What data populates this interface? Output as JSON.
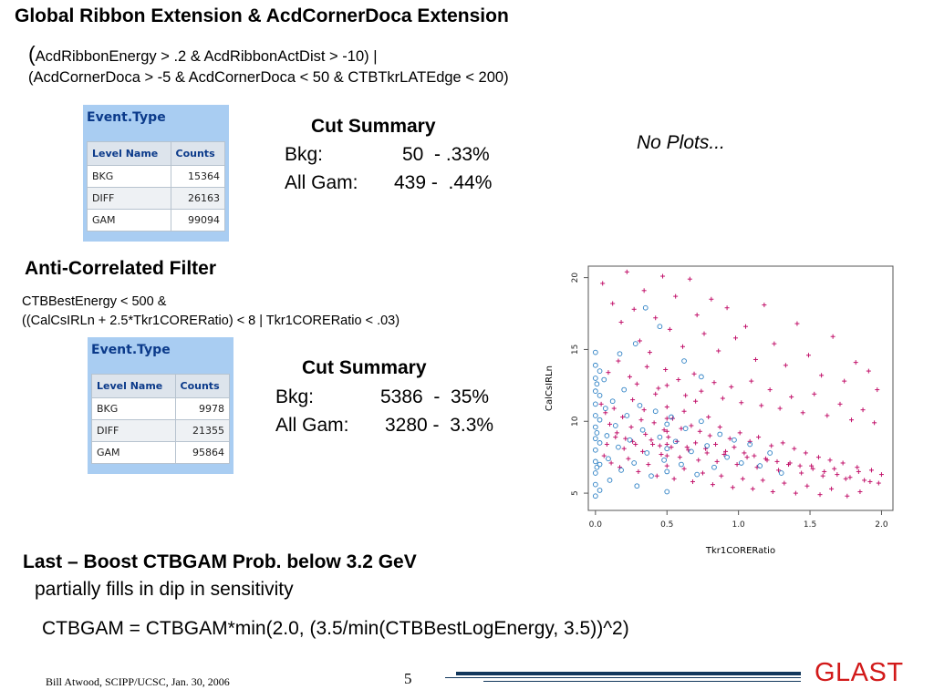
{
  "slide": {
    "title": "Global Ribbon Extension & AcdCornerDoca Extension",
    "filter1_open_paren": "(",
    "filter1_line1": "AcdRibbonEnergy > .2 & AcdRibbonActDist > -10) |",
    "filter1_line2": "(AcdCornerDoca > -5 & AcdCornerDoca < 50 & CTBTkrLATEdge < 200)",
    "no_plots": "No Plots...",
    "section2_title": "Anti-Correlated Filter",
    "filter2_line1": "CTBBestEnergy < 500 &",
    "filter2_line2": "((CalCsIRLn + 2.5*Tkr1CORERatio) < 8 | Tkr1CORERatio < .03)",
    "last_title": "Last – Boost CTBGAM Prob. below 3.2 GeV",
    "last_sub": "partially fills in dip in sensitivity",
    "formula": "CTBGAM = CTBGAM*min(2.0, (3.5/min(CTBBestLogEnergy, 3.5))^2)"
  },
  "table1": {
    "title": "Event.Type",
    "headers": [
      "Level Name",
      "Counts"
    ],
    "rows": [
      {
        "name": "BKG",
        "count": "15364"
      },
      {
        "name": "DIFF",
        "count": "26163"
      },
      {
        "name": "GAM",
        "count": "99094"
      }
    ]
  },
  "table2": {
    "title": "Event.Type",
    "headers": [
      "Level Name",
      "Counts"
    ],
    "rows": [
      {
        "name": "BKG",
        "count": "9978"
      },
      {
        "name": "DIFF",
        "count": "21355"
      },
      {
        "name": "GAM",
        "count": "95864"
      }
    ]
  },
  "cut1": {
    "heading": "Cut Summary",
    "bkg_label": "Bkg:",
    "bkg_value": "50  - .33%",
    "gam_label": "All Gam:",
    "gam_value": "439 -  .44%"
  },
  "cut2": {
    "heading": "Cut Summary",
    "bkg_label": "Bkg:",
    "bkg_value": "5386  -  35%",
    "gam_label": "All Gam:",
    "gam_value": "3280 -  3.3%"
  },
  "footer": {
    "author": "Bill Atwood,  SCIPP/UCSC, Jan. 30, 2006",
    "page": "5",
    "logo": "GLAST"
  },
  "colors": {
    "table_frame": "#a9cdf2",
    "table_title": "#0b3a8a",
    "series_plus": "#c2136b",
    "series_circle": "#2a7fc4",
    "logo": "#d21a1a",
    "rule": "#12375c"
  },
  "chart_data": {
    "type": "scatter",
    "xlabel": "Tkr1CORERatio",
    "ylabel": "CalCsIRLn",
    "xlim": [
      -0.05,
      2.08
    ],
    "ylim": [
      3.8,
      20.8
    ],
    "xticks": [
      "0.0",
      "0.5",
      "1.0",
      "1.5",
      "2.0"
    ],
    "xtick_values": [
      0.0,
      0.5,
      1.0,
      1.5,
      2.0
    ],
    "yticks": [
      "5",
      "10",
      "15",
      "20"
    ],
    "ytick_values": [
      5,
      10,
      15,
      20
    ],
    "grid": false,
    "series": [
      {
        "marker": "plus",
        "color": "#c2136b",
        "points": [
          [
            0.05,
            19.6
          ],
          [
            0.12,
            18.2
          ],
          [
            0.18,
            16.9
          ],
          [
            0.22,
            20.4
          ],
          [
            0.27,
            17.8
          ],
          [
            0.31,
            15.6
          ],
          [
            0.34,
            19.1
          ],
          [
            0.38,
            14.8
          ],
          [
            0.42,
            17.2
          ],
          [
            0.47,
            20.1
          ],
          [
            0.52,
            16.4
          ],
          [
            0.56,
            18.7
          ],
          [
            0.61,
            15.2
          ],
          [
            0.66,
            19.9
          ],
          [
            0.71,
            17.4
          ],
          [
            0.76,
            16.1
          ],
          [
            0.81,
            18.5
          ],
          [
            0.86,
            14.9
          ],
          [
            0.92,
            17.9
          ],
          [
            0.98,
            15.8
          ],
          [
            1.05,
            16.6
          ],
          [
            1.12,
            14.3
          ],
          [
            1.18,
            18.1
          ],
          [
            1.25,
            15.4
          ],
          [
            1.33,
            13.9
          ],
          [
            1.41,
            16.8
          ],
          [
            1.49,
            14.6
          ],
          [
            1.58,
            13.2
          ],
          [
            1.66,
            15.9
          ],
          [
            1.74,
            12.8
          ],
          [
            1.82,
            14.1
          ],
          [
            1.91,
            13.5
          ],
          [
            1.97,
            12.2
          ],
          [
            0.09,
            13.4
          ],
          [
            0.16,
            14.2
          ],
          [
            0.24,
            13.1
          ],
          [
            0.29,
            12.6
          ],
          [
            0.36,
            13.8
          ],
          [
            0.44,
            12.3
          ],
          [
            0.49,
            13.6
          ],
          [
            0.58,
            12.9
          ],
          [
            0.63,
            11.8
          ],
          [
            0.69,
            13.3
          ],
          [
            0.74,
            12.1
          ],
          [
            0.83,
            12.7
          ],
          [
            0.89,
            11.6
          ],
          [
            0.95,
            12.4
          ],
          [
            1.02,
            11.3
          ],
          [
            1.09,
            12.8
          ],
          [
            1.16,
            11.1
          ],
          [
            1.22,
            12.2
          ],
          [
            1.29,
            10.9
          ],
          [
            1.37,
            11.7
          ],
          [
            1.45,
            10.6
          ],
          [
            1.53,
            11.9
          ],
          [
            1.62,
            10.4
          ],
          [
            1.71,
            11.2
          ],
          [
            1.79,
            10.1
          ],
          [
            1.87,
            10.8
          ],
          [
            1.95,
            9.9
          ],
          [
            0.04,
            11.2
          ],
          [
            0.07,
            10.6
          ],
          [
            0.1,
            9.8
          ],
          [
            0.13,
            10.9
          ],
          [
            0.15,
            9.2
          ],
          [
            0.19,
            10.3
          ],
          [
            0.21,
            8.8
          ],
          [
            0.25,
            9.6
          ],
          [
            0.28,
            8.4
          ],
          [
            0.32,
            10.1
          ],
          [
            0.35,
            9.1
          ],
          [
            0.39,
            8.7
          ],
          [
            0.41,
            9.9
          ],
          [
            0.45,
            8.3
          ],
          [
            0.48,
            9.4
          ],
          [
            0.51,
            8.9
          ],
          [
            0.54,
            10.2
          ],
          [
            0.57,
            8.6
          ],
          [
            0.6,
            9.5
          ],
          [
            0.64,
            8.2
          ],
          [
            0.67,
            9.7
          ],
          [
            0.7,
            8.5
          ],
          [
            0.73,
            9.3
          ],
          [
            0.77,
            8.1
          ],
          [
            0.8,
            9.0
          ],
          [
            0.84,
            8.4
          ],
          [
            0.87,
            9.6
          ],
          [
            0.91,
            7.9
          ],
          [
            0.94,
            8.8
          ],
          [
            0.97,
            8.2
          ],
          [
            1.01,
            9.2
          ],
          [
            1.04,
            7.8
          ],
          [
            1.08,
            8.6
          ],
          [
            1.11,
            7.6
          ],
          [
            1.14,
            8.9
          ],
          [
            1.19,
            7.4
          ],
          [
            1.23,
            8.3
          ],
          [
            1.27,
            7.2
          ],
          [
            1.31,
            8.5
          ],
          [
            1.35,
            7.0
          ],
          [
            1.39,
            8.1
          ],
          [
            1.43,
            6.9
          ],
          [
            1.47,
            7.8
          ],
          [
            1.52,
            6.7
          ],
          [
            1.56,
            7.5
          ],
          [
            1.6,
            6.5
          ],
          [
            1.64,
            7.3
          ],
          [
            1.69,
            6.3
          ],
          [
            1.73,
            7.1
          ],
          [
            1.78,
            6.1
          ],
          [
            1.83,
            6.8
          ],
          [
            1.88,
            5.9
          ],
          [
            1.93,
            6.6
          ],
          [
            1.98,
            5.7
          ],
          [
            0.06,
            7.6
          ],
          [
            0.11,
            7.1
          ],
          [
            0.17,
            6.8
          ],
          [
            0.23,
            7.4
          ],
          [
            0.3,
            6.5
          ],
          [
            0.37,
            7.0
          ],
          [
            0.43,
            6.2
          ],
          [
            0.5,
            6.9
          ],
          [
            0.55,
            6.0
          ],
          [
            0.62,
            6.7
          ],
          [
            0.68,
            5.8
          ],
          [
            0.75,
            6.4
          ],
          [
            0.82,
            5.6
          ],
          [
            0.88,
            6.2
          ],
          [
            0.96,
            5.4
          ],
          [
            1.03,
            6.0
          ],
          [
            1.1,
            5.3
          ],
          [
            1.17,
            5.9
          ],
          [
            1.24,
            5.1
          ],
          [
            1.32,
            5.7
          ],
          [
            1.4,
            5.0
          ],
          [
            1.48,
            5.5
          ],
          [
            1.57,
            4.9
          ],
          [
            1.65,
            5.3
          ],
          [
            1.76,
            4.8
          ],
          [
            1.85,
            5.1
          ],
          [
            0.08,
            8.4
          ],
          [
            0.14,
            8.9
          ],
          [
            0.2,
            8.1
          ],
          [
            0.26,
            8.6
          ],
          [
            0.33,
            7.9
          ],
          [
            0.4,
            8.4
          ],
          [
            0.46,
            7.7
          ],
          [
            0.53,
            8.2
          ],
          [
            0.59,
            7.5
          ],
          [
            0.65,
            8.0
          ],
          [
            0.72,
            7.3
          ],
          [
            0.78,
            7.8
          ],
          [
            0.85,
            7.2
          ],
          [
            0.9,
            7.7
          ],
          [
            0.99,
            7.0
          ],
          [
            1.06,
            7.5
          ],
          [
            1.13,
            6.8
          ],
          [
            1.2,
            7.3
          ],
          [
            1.28,
            6.6
          ],
          [
            1.36,
            7.1
          ],
          [
            1.44,
            6.4
          ],
          [
            1.51,
            6.9
          ],
          [
            1.59,
            6.2
          ],
          [
            1.67,
            6.7
          ],
          [
            1.75,
            6.0
          ],
          [
            1.84,
            6.5
          ],
          [
            1.92,
            5.8
          ],
          [
            2.0,
            6.3
          ],
          [
            0.5,
            11.0
          ],
          [
            0.5,
            10.2
          ],
          [
            0.5,
            9.3
          ],
          [
            0.5,
            8.4
          ],
          [
            0.5,
            7.6
          ],
          [
            0.5,
            12.5
          ],
          [
            0.26,
            11.5
          ],
          [
            0.34,
            10.8
          ],
          [
            0.42,
            11.9
          ],
          [
            0.62,
            10.7
          ],
          [
            0.7,
            11.4
          ],
          [
            0.79,
            10.3
          ]
        ]
      },
      {
        "marker": "circle",
        "color": "#2a7fc4",
        "points": [
          [
            0.0,
            14.8
          ],
          [
            0.0,
            13.9
          ],
          [
            0.0,
            13.0
          ],
          [
            0.0,
            12.1
          ],
          [
            0.0,
            11.2
          ],
          [
            0.0,
            10.4
          ],
          [
            0.0,
            9.6
          ],
          [
            0.0,
            8.8
          ],
          [
            0.0,
            8.0
          ],
          [
            0.0,
            7.2
          ],
          [
            0.0,
            6.4
          ],
          [
            0.0,
            5.6
          ],
          [
            0.0,
            4.8
          ],
          [
            0.01,
            12.6
          ],
          [
            0.01,
            9.2
          ],
          [
            0.01,
            6.8
          ],
          [
            0.03,
            13.5
          ],
          [
            0.03,
            11.8
          ],
          [
            0.03,
            10.1
          ],
          [
            0.03,
            8.5
          ],
          [
            0.03,
            7.0
          ],
          [
            0.03,
            5.2
          ],
          [
            0.06,
            12.9
          ],
          [
            0.07,
            10.9
          ],
          [
            0.08,
            9.0
          ],
          [
            0.09,
            7.4
          ],
          [
            0.1,
            5.9
          ],
          [
            0.12,
            11.4
          ],
          [
            0.14,
            9.7
          ],
          [
            0.16,
            8.2
          ],
          [
            0.18,
            6.6
          ],
          [
            0.2,
            12.2
          ],
          [
            0.22,
            10.4
          ],
          [
            0.24,
            8.7
          ],
          [
            0.27,
            7.1
          ],
          [
            0.29,
            5.5
          ],
          [
            0.31,
            11.1
          ],
          [
            0.33,
            9.4
          ],
          [
            0.36,
            7.8
          ],
          [
            0.39,
            6.2
          ],
          [
            0.42,
            10.7
          ],
          [
            0.45,
            8.9
          ],
          [
            0.48,
            7.3
          ],
          [
            0.5,
            9.8
          ],
          [
            0.5,
            8.1
          ],
          [
            0.5,
            6.5
          ],
          [
            0.5,
            5.1
          ],
          [
            0.53,
            10.3
          ],
          [
            0.56,
            8.6
          ],
          [
            0.6,
            7.0
          ],
          [
            0.63,
            9.5
          ],
          [
            0.67,
            7.9
          ],
          [
            0.71,
            6.3
          ],
          [
            0.74,
            10.0
          ],
          [
            0.78,
            8.3
          ],
          [
            0.83,
            6.8
          ],
          [
            0.87,
            9.1
          ],
          [
            0.92,
            7.5
          ],
          [
            0.97,
            8.7
          ],
          [
            1.02,
            7.1
          ],
          [
            1.08,
            8.4
          ],
          [
            1.15,
            6.9
          ],
          [
            1.22,
            7.8
          ],
          [
            1.3,
            6.4
          ],
          [
            0.35,
            17.9
          ],
          [
            0.28,
            15.4
          ],
          [
            0.62,
            14.2
          ],
          [
            0.45,
            16.6
          ],
          [
            0.17,
            14.7
          ],
          [
            0.74,
            13.1
          ]
        ]
      }
    ]
  }
}
